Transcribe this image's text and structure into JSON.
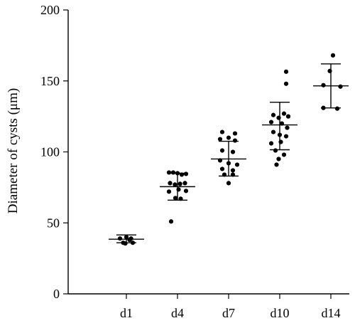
{
  "chart_data": {
    "type": "scatter",
    "title": "",
    "xlabel": "",
    "ylabel": "Diameter of cysts (μm)",
    "ylim": [
      0,
      200
    ],
    "yticks": [
      0,
      50,
      100,
      150,
      200
    ],
    "grid": false,
    "categories": [
      "d1",
      "d4",
      "d7",
      "d10",
      "d14"
    ],
    "summary": [
      {
        "category": "d1",
        "mean": 38.5,
        "low": 36.0,
        "high": 41.5
      },
      {
        "category": "d4",
        "mean": 75.5,
        "low": 66.0,
        "high": 85.0
      },
      {
        "category": "d7",
        "mean": 95.0,
        "low": 83.0,
        "high": 107.5
      },
      {
        "category": "d10",
        "mean": 119.0,
        "low": 101.5,
        "high": 135.0
      },
      {
        "category": "d14",
        "mean": 146.5,
        "low": 131.0,
        "high": 162.0
      }
    ],
    "points": [
      {
        "category": "d1",
        "offset": -0.3,
        "y": 39
      },
      {
        "category": "d1",
        "offset": -0.15,
        "y": 36
      },
      {
        "category": "d1",
        "offset": 0.0,
        "y": 40
      },
      {
        "category": "d1",
        "offset": 0.15,
        "y": 38
      },
      {
        "category": "d1",
        "offset": 0.3,
        "y": 36
      },
      {
        "category": "d1",
        "offset": -0.05,
        "y": 35.5
      },
      {
        "category": "d1",
        "offset": 0.22,
        "y": 39
      },
      {
        "category": "d4",
        "offset": -0.4,
        "y": 85.5
      },
      {
        "category": "d4",
        "offset": -0.2,
        "y": 85.5
      },
      {
        "category": "d4",
        "offset": 0.0,
        "y": 85
      },
      {
        "category": "d4",
        "offset": 0.2,
        "y": 84
      },
      {
        "category": "d4",
        "offset": 0.4,
        "y": 84.5
      },
      {
        "category": "d4",
        "offset": -0.35,
        "y": 78
      },
      {
        "category": "d4",
        "offset": -0.12,
        "y": 77
      },
      {
        "category": "d4",
        "offset": 0.12,
        "y": 77.5
      },
      {
        "category": "d4",
        "offset": 0.35,
        "y": 78
      },
      {
        "category": "d4",
        "offset": -0.4,
        "y": 72
      },
      {
        "category": "d4",
        "offset": 0.05,
        "y": 73.5
      },
      {
        "category": "d4",
        "offset": 0.4,
        "y": 72.5
      },
      {
        "category": "d4",
        "offset": -0.1,
        "y": 67.5
      },
      {
        "category": "d4",
        "offset": 0.15,
        "y": 67
      },
      {
        "category": "d4",
        "offset": -0.3,
        "y": 51
      },
      {
        "category": "d7",
        "offset": -0.3,
        "y": 114
      },
      {
        "category": "d7",
        "offset": 0.3,
        "y": 113
      },
      {
        "category": "d7",
        "offset": -0.4,
        "y": 109
      },
      {
        "category": "d7",
        "offset": 0.0,
        "y": 110
      },
      {
        "category": "d7",
        "offset": 0.3,
        "y": 108
      },
      {
        "category": "d7",
        "offset": -0.3,
        "y": 101
      },
      {
        "category": "d7",
        "offset": 0.2,
        "y": 100
      },
      {
        "category": "d7",
        "offset": -0.4,
        "y": 94
      },
      {
        "category": "d7",
        "offset": 0.0,
        "y": 92
      },
      {
        "category": "d7",
        "offset": 0.4,
        "y": 91
      },
      {
        "category": "d7",
        "offset": -0.3,
        "y": 88
      },
      {
        "category": "d7",
        "offset": 0.2,
        "y": 87
      },
      {
        "category": "d7",
        "offset": -0.2,
        "y": 84
      },
      {
        "category": "d7",
        "offset": 0.2,
        "y": 84
      },
      {
        "category": "d7",
        "offset": 0.0,
        "y": 78
      },
      {
        "category": "d10",
        "offset": 0.3,
        "y": 156.5
      },
      {
        "category": "d10",
        "offset": 0.3,
        "y": 148
      },
      {
        "category": "d10",
        "offset": -0.3,
        "y": 126
      },
      {
        "category": "d10",
        "offset": -0.05,
        "y": 124
      },
      {
        "category": "d10",
        "offset": 0.2,
        "y": 127
      },
      {
        "category": "d10",
        "offset": 0.4,
        "y": 125
      },
      {
        "category": "d10",
        "offset": -0.4,
        "y": 121
      },
      {
        "category": "d10",
        "offset": 0.1,
        "y": 120
      },
      {
        "category": "d10",
        "offset": 0.35,
        "y": 117
      },
      {
        "category": "d10",
        "offset": -0.3,
        "y": 114
      },
      {
        "category": "d10",
        "offset": 0.0,
        "y": 112
      },
      {
        "category": "d10",
        "offset": 0.3,
        "y": 111
      },
      {
        "category": "d10",
        "offset": -0.4,
        "y": 106
      },
      {
        "category": "d10",
        "offset": 0.05,
        "y": 107
      },
      {
        "category": "d10",
        "offset": -0.2,
        "y": 101
      },
      {
        "category": "d10",
        "offset": 0.2,
        "y": 98
      },
      {
        "category": "d10",
        "offset": -0.05,
        "y": 95
      },
      {
        "category": "d10",
        "offset": -0.15,
        "y": 91
      },
      {
        "category": "d14",
        "offset": 0.1,
        "y": 168
      },
      {
        "category": "d14",
        "offset": -0.05,
        "y": 157
      },
      {
        "category": "d14",
        "offset": -0.35,
        "y": 147
      },
      {
        "category": "d14",
        "offset": 0.45,
        "y": 146
      },
      {
        "category": "d14",
        "offset": -0.35,
        "y": 131
      },
      {
        "category": "d14",
        "offset": 0.3,
        "y": 130.5
      }
    ]
  }
}
